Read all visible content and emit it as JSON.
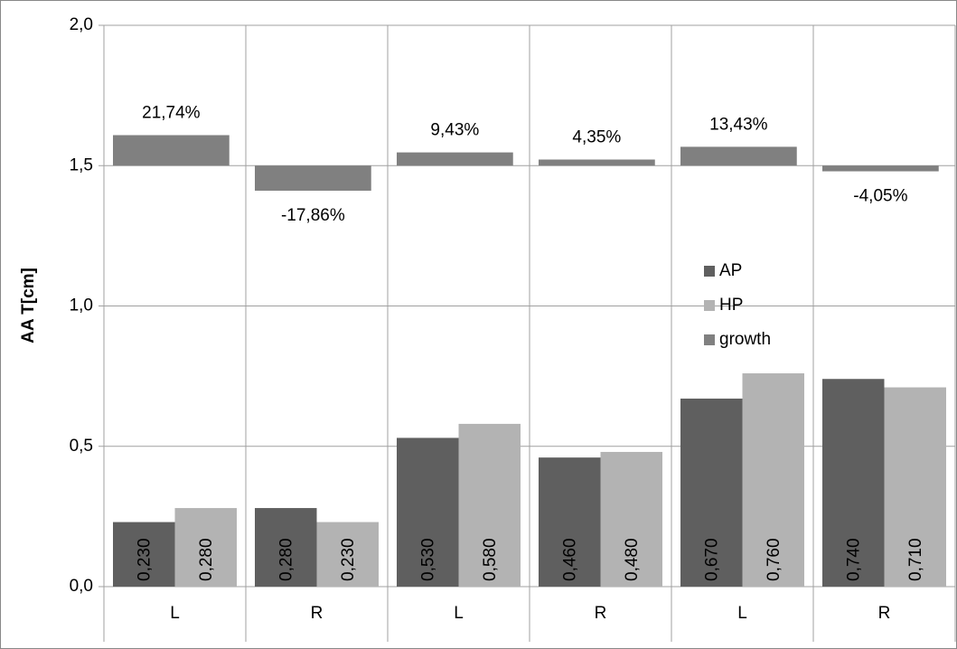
{
  "chart_data": {
    "type": "bar",
    "y_label": "AA T[cm]",
    "categories": [
      "L",
      "R",
      "L",
      "R",
      "L",
      "R"
    ],
    "ylim": [
      0,
      2
    ],
    "yticks": [
      {
        "value": 0,
        "label": "0,0"
      },
      {
        "value": 0.5,
        "label": "0,5"
      },
      {
        "value": 1,
        "label": "1,0"
      },
      {
        "value": 1.5,
        "label": "1,5"
      },
      {
        "value": 2,
        "label": "2,0"
      }
    ],
    "y2lim": [
      -300,
      100
    ],
    "grid": true,
    "series": [
      {
        "name": "AP",
        "color": "#5f5f5f",
        "values": [
          0.23,
          0.28,
          0.53,
          0.46,
          0.67,
          0.74
        ],
        "value_labels": [
          "0,230",
          "0,280",
          "0,530",
          "0,460",
          "0,670",
          "0,740"
        ]
      },
      {
        "name": "HP",
        "color": "#b3b3b3",
        "values": [
          0.28,
          0.23,
          0.58,
          0.48,
          0.76,
          0.71
        ],
        "value_labels": [
          "0,280",
          "0,230",
          "0,580",
          "0,480",
          "0,760",
          "0,710"
        ]
      },
      {
        "name": "growth",
        "color": "#808080",
        "axis": "y2",
        "values": [
          21.74,
          -17.86,
          9.43,
          4.35,
          13.43,
          -4.05
        ],
        "value_labels": [
          "21,74%",
          "-17,86%",
          "9,43%",
          "4,35%",
          "13,43%",
          "-4,05%"
        ]
      }
    ]
  }
}
